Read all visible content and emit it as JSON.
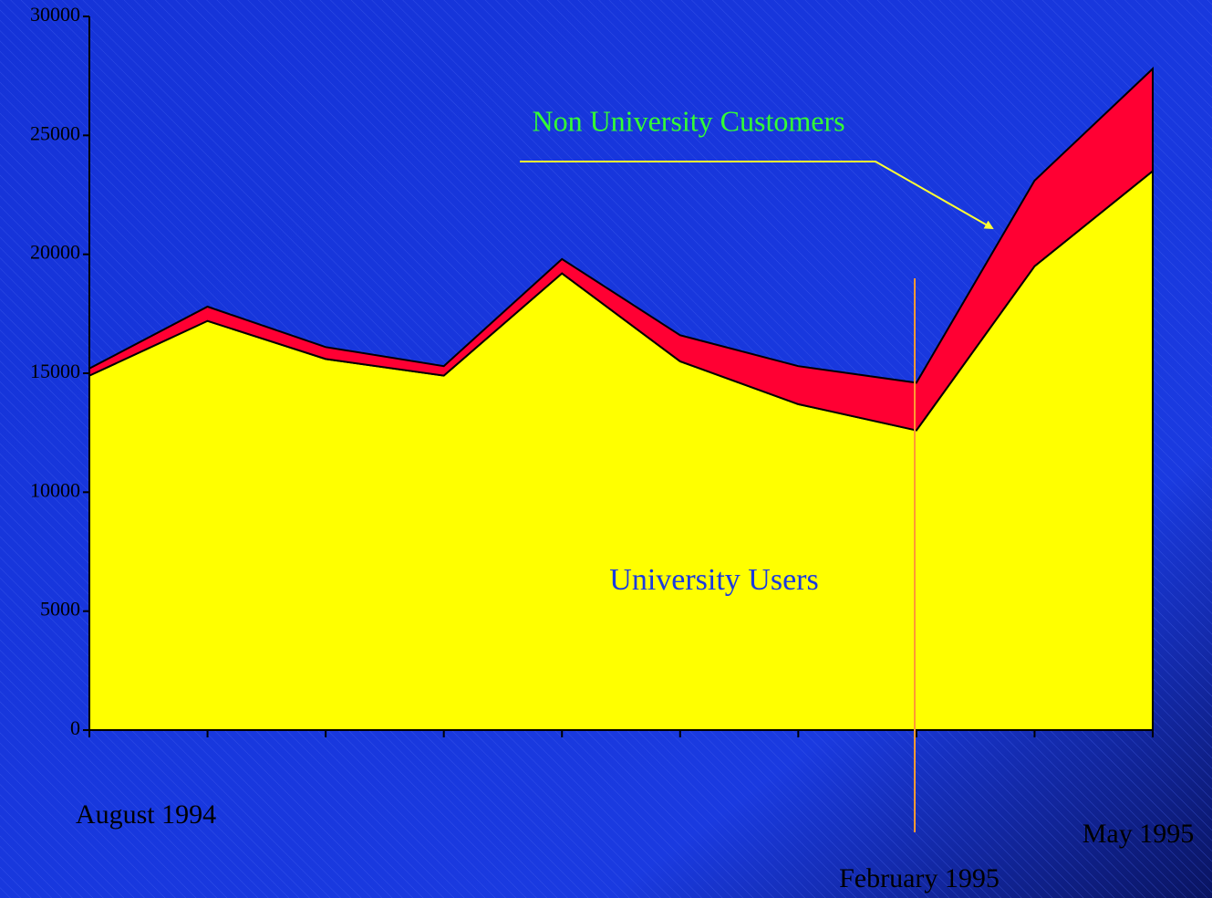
{
  "chart_data": {
    "type": "stacked_area",
    "categories": [
      "August 1994",
      null,
      null,
      null,
      null,
      null,
      null,
      "February 1995",
      null,
      "May 1995"
    ],
    "series": [
      {
        "name": "University Users",
        "color": "#ffff00",
        "values": [
          14900,
          17200,
          15600,
          14900,
          19200,
          15500,
          13700,
          12600,
          19500,
          23500
        ]
      },
      {
        "name": "Non University Customers",
        "color": "#ff0033",
        "values": [
          300,
          600,
          500,
          400,
          600,
          1100,
          1600,
          2000,
          3600,
          4300
        ]
      }
    ],
    "ylim": [
      0,
      30000
    ],
    "yticks": [
      0,
      5000,
      10000,
      15000,
      20000,
      25000,
      30000
    ]
  }
}
